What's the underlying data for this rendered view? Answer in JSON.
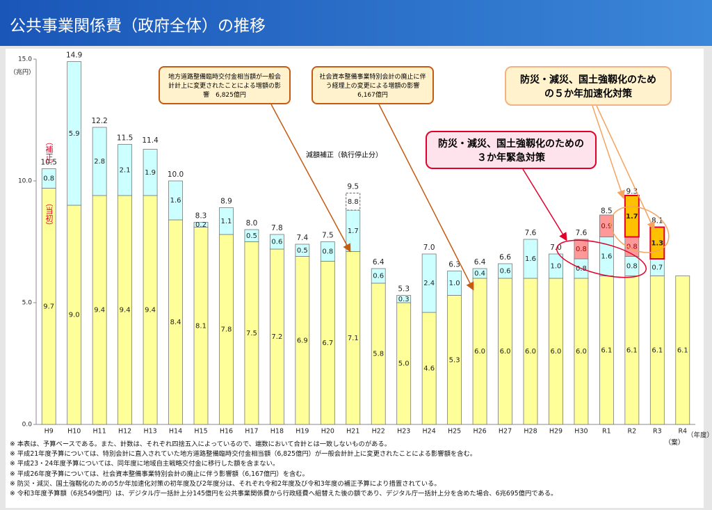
{
  "chart_data": {
    "type": "bar",
    "stacked": true,
    "title": "公共事業関係費（政府全体）の推移",
    "y_unit": "（兆円）",
    "x_label": "（年度）",
    "categories": [
      "H9",
      "H10",
      "H11",
      "H12",
      "H13",
      "H14",
      "H15",
      "H16",
      "H17",
      "H18",
      "H19",
      "H20",
      "H21",
      "H22",
      "H23",
      "H24",
      "H25",
      "H26",
      "H27",
      "H28",
      "H29",
      "H30",
      "R1",
      "R2",
      "R3",
      "R4"
    ],
    "ylim": [
      0,
      15
    ],
    "yticks": [
      {
        "value": 0,
        "label": "0.0"
      },
      {
        "value": 5,
        "label": "5.0"
      },
      {
        "value": 10,
        "label": "10.0"
      },
      {
        "value": 15,
        "label": "15.0"
      }
    ],
    "series": [
      {
        "name": "（当初）",
        "color": "#ffff99",
        "values": [
          9.7,
          9.0,
          9.4,
          9.4,
          9.4,
          8.4,
          8.1,
          7.8,
          7.5,
          7.2,
          6.9,
          6.7,
          7.1,
          5.8,
          5.0,
          4.6,
          5.3,
          6.0,
          6.0,
          6.0,
          6.0,
          6.0,
          6.1,
          6.1,
          6.1,
          6.1
        ],
        "value_labels": [
          "9.7",
          "9.0",
          "9.4",
          "9.4",
          "9.4",
          "8.4",
          "8.1",
          "7.8",
          "7.5",
          "7.2",
          "6.9",
          "6.7",
          "7.1",
          "5.8",
          "5.0",
          "4.6",
          "5.3",
          "6.0",
          "6.0",
          "6.0",
          "6.0",
          "6.0",
          "6.1",
          "6.1",
          "6.1",
          "6.1"
        ]
      },
      {
        "name": "（補正）",
        "color": "#ccffff",
        "values": [
          0.8,
          5.9,
          2.8,
          2.1,
          1.9,
          1.6,
          0.2,
          1.1,
          0.5,
          0.6,
          0.5,
          0.8,
          1.7,
          0.6,
          0.3,
          2.4,
          1.0,
          0.4,
          0.6,
          1.6,
          1.0,
          0.8,
          1.6,
          0.8,
          0.7,
          null
        ],
        "value_labels": [
          "0.8",
          "5.9",
          "2.8",
          "2.1",
          "1.9",
          "1.6",
          "0.2",
          "1.1",
          "0.5",
          "0.6",
          "0.5",
          "0.8",
          "1.7",
          "0.6",
          "0.3",
          "2.4",
          "1.0",
          "0.4",
          "0.6",
          "1.6",
          "1.0",
          "0.8",
          "1.6",
          "0.8",
          "0.7",
          null
        ]
      },
      {
        "name": "防災・減災、国土強靱化のための３か年緊急対策",
        "color": "#ff9999",
        "values": [
          null,
          null,
          null,
          null,
          null,
          null,
          null,
          null,
          null,
          null,
          null,
          null,
          null,
          null,
          null,
          null,
          null,
          null,
          null,
          null,
          null,
          0.8,
          0.9,
          0.8,
          null,
          null
        ],
        "value_labels": [
          null,
          null,
          null,
          null,
          null,
          null,
          null,
          null,
          null,
          null,
          null,
          null,
          null,
          null,
          null,
          null,
          null,
          null,
          null,
          null,
          null,
          "0.8",
          "0.9",
          "0.8",
          null,
          null
        ]
      },
      {
        "name": "防災・減災、国土強靱化のための５か年加速化対策",
        "color": "#ffc000",
        "values": [
          null,
          null,
          null,
          null,
          null,
          null,
          null,
          null,
          null,
          null,
          null,
          null,
          null,
          null,
          null,
          null,
          null,
          null,
          null,
          null,
          null,
          null,
          null,
          1.7,
          1.3,
          null
        ],
        "value_labels": [
          null,
          null,
          null,
          null,
          null,
          null,
          null,
          null,
          null,
          null,
          null,
          null,
          null,
          null,
          null,
          null,
          null,
          null,
          null,
          null,
          null,
          null,
          null,
          "1.7",
          "1.3",
          null
        ]
      },
      {
        "name": "減額補正（執行停止分）",
        "color": "#ffffff",
        "style": "dashed",
        "values": [
          null,
          null,
          null,
          null,
          null,
          null,
          null,
          null,
          null,
          null,
          null,
          null,
          0.7,
          null,
          null,
          null,
          null,
          null,
          null,
          null,
          null,
          null,
          null,
          null,
          null,
          null
        ]
      }
    ],
    "totals": [
      10.5,
      14.9,
      12.2,
      11.5,
      11.4,
      10.0,
      8.3,
      8.9,
      8.0,
      7.8,
      7.4,
      7.5,
      9.5,
      6.4,
      5.3,
      7.0,
      6.3,
      6.4,
      6.6,
      7.6,
      7.0,
      7.6,
      8.5,
      9.3,
      8.1,
      null
    ],
    "total_labels": [
      "10.5",
      "14.9",
      "12.2",
      "11.5",
      "11.4",
      "10.0",
      "8.3",
      "8.9",
      "8.0",
      "7.8",
      "7.4",
      "7.5",
      "9.5",
      "6.4",
      "5.3",
      "7.0",
      "6.3",
      "6.4",
      "6.6",
      "7.6",
      "7.0",
      "7.6",
      "8.5",
      "9.3",
      "8.1",
      null
    ],
    "annotations": [
      {
        "text": "地方道路整備臨時交付金相当額が一般会計計上に変更されたことによる増額の影響　6,825億円"
      },
      {
        "text": "社会資本整備事業特別会計の廃止に伴う経理上の変更による増額の影響　6,167億円"
      },
      {
        "text": "8.8",
        "value": 8.8
      },
      {
        "text": "（案）"
      }
    ],
    "notes": [
      "※ 本表は、予算ベースである。また、計数は、それぞれ四捨五入によっているので、端数において合計とは一致しないものがある。",
      "※ 平成21年度予算については、特別会計に直入されていた地方道路整備臨時交付金相当額（6,825億円）が一般会計計上に変更されたことによる影響額を含む。",
      "※ 平成23・24年度予算については、同年度に地域自主戦略交付金に移行した額を含まない。",
      "※ 平成26年度予算については、社会資本整備事業特別会計の廃止に伴う影響額（6,167億円）を含む。",
      "※ 防災・減災、国土強靱化のための5か年加速化対策の初年度及び2年度分は、それぞれ令和2年度及び令和3年度の補正予算により措置されている。",
      "※ 令和3年度予算額（6兆549億円）は、デジタル庁一括計上分145億円を公共事業関係費から行政経費へ組替えた後の額であり、デジタル庁一括計上分を含めた場合、6兆695億円である。"
    ]
  }
}
